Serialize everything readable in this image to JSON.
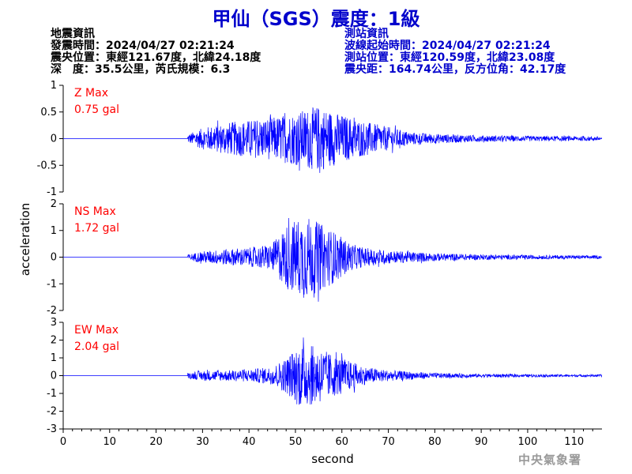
{
  "title": "甲仙（SGS）震度：1級",
  "event_info": {
    "heading": "地震資訊",
    "origin_time": "發震時間：2024/04/27 02:21:24",
    "epicenter": "震央位置：東經121.67度，北緯24.18度",
    "depth_magnitude": "深　度：35.5公里，芮氏規模：6.3"
  },
  "station_info": {
    "heading": "測站資訊",
    "waveform_start": "波線起始時間：2024/04/27 02:21:24",
    "station_location": "測站位置：東經120.59度，北緯23.08度",
    "distance_azimuth": "震央距：164.74公里，反方位角：42.17度"
  },
  "watermark": "中央氣象署",
  "colors": {
    "trace": "#0000ff",
    "label": "#ff0000",
    "title": "#0000cc",
    "axis": "#000000"
  },
  "chart_data": {
    "type": "line",
    "xlabel": "second",
    "ylabel": "acceleration",
    "xlim": [
      0,
      116
    ],
    "xticks": [
      0,
      10,
      20,
      30,
      40,
      50,
      60,
      70,
      80,
      90,
      100,
      110
    ],
    "panels": [
      {
        "name": "Z",
        "max_label": "Z Max",
        "max_value": "0.75 gal",
        "ylim": [
          -1,
          1
        ],
        "yticks": [
          -1,
          -0.5,
          0,
          0.5,
          1
        ],
        "onset": 26.8,
        "envelope": [
          [
            26.8,
            0.08
          ],
          [
            30,
            0.2
          ],
          [
            35,
            0.3
          ],
          [
            40,
            0.35
          ],
          [
            45,
            0.4
          ],
          [
            50,
            0.5
          ],
          [
            55,
            0.62
          ],
          [
            60,
            0.45
          ],
          [
            65,
            0.32
          ],
          [
            70,
            0.22
          ],
          [
            75,
            0.12
          ],
          [
            80,
            0.09
          ],
          [
            90,
            0.06
          ],
          [
            100,
            0.05
          ],
          [
            116,
            0.04
          ]
        ]
      },
      {
        "name": "NS",
        "max_label": "NS Max",
        "max_value": "1.72 gal",
        "ylim": [
          -2,
          2
        ],
        "yticks": [
          -2,
          -1,
          0,
          1,
          2
        ],
        "onset": 26.8,
        "envelope": [
          [
            26.8,
            0.1
          ],
          [
            30,
            0.22
          ],
          [
            35,
            0.3
          ],
          [
            40,
            0.35
          ],
          [
            45,
            0.5
          ],
          [
            48,
            1.2
          ],
          [
            52,
            1.6
          ],
          [
            55,
            1.3
          ],
          [
            58,
            1.0
          ],
          [
            62,
            0.5
          ],
          [
            65,
            0.35
          ],
          [
            70,
            0.25
          ],
          [
            80,
            0.15
          ],
          [
            90,
            0.1
          ],
          [
            100,
            0.08
          ],
          [
            116,
            0.06
          ]
        ]
      },
      {
        "name": "EW",
        "max_label": "EW Max",
        "max_value": "2.04 gal",
        "ylim": [
          -3,
          3
        ],
        "yticks": [
          -3,
          -2,
          -1,
          0,
          1,
          2,
          3
        ],
        "onset": 26.8,
        "envelope": [
          [
            26.8,
            0.15
          ],
          [
            30,
            0.28
          ],
          [
            35,
            0.3
          ],
          [
            40,
            0.35
          ],
          [
            45,
            0.5
          ],
          [
            48,
            1.0
          ],
          [
            51,
            1.8
          ],
          [
            55,
            1.6
          ],
          [
            58,
            1.2
          ],
          [
            62,
            0.8
          ],
          [
            65,
            0.5
          ],
          [
            70,
            0.3
          ],
          [
            80,
            0.15
          ],
          [
            90,
            0.1
          ],
          [
            100,
            0.08
          ],
          [
            116,
            0.06
          ]
        ]
      }
    ]
  }
}
